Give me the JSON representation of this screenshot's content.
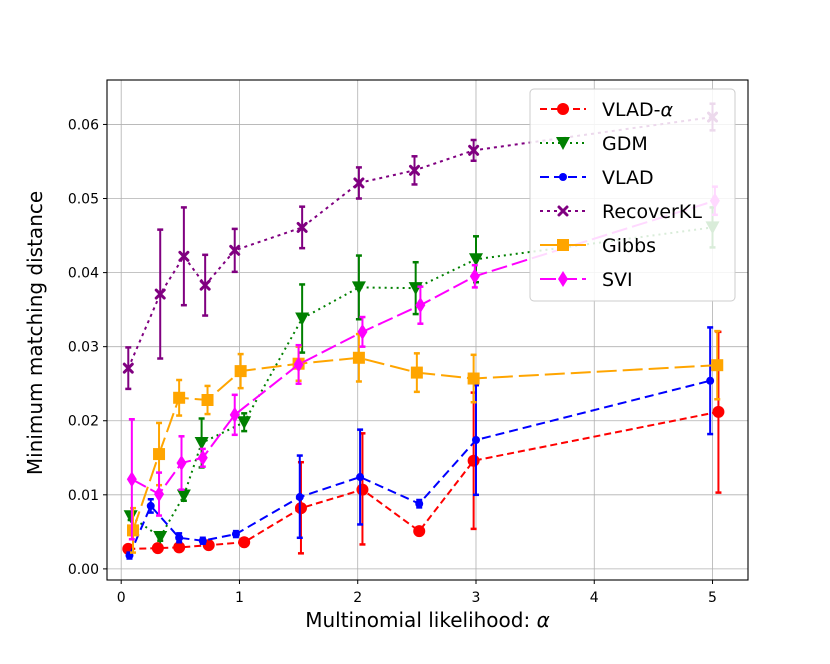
{
  "chart_data": {
    "type": "line",
    "title": "",
    "xlabel": "Multinomial likelihood: α",
    "ylabel": "Minimum matching distance",
    "xlim": [
      -0.12,
      5.3
    ],
    "ylim": [
      -0.0015,
      0.066
    ],
    "xticks": [
      0,
      1,
      2,
      3,
      4,
      5
    ],
    "xtick_labels": [
      "0",
      "1",
      "2",
      "3",
      "4",
      "5"
    ],
    "yticks": [
      0.0,
      0.01,
      0.02,
      0.03,
      0.04,
      0.05,
      0.06
    ],
    "ytick_labels": [
      "0.00",
      "0.01",
      "0.02",
      "0.03",
      "0.04",
      "0.05",
      "0.06"
    ],
    "grid": true,
    "legend_position": "top-right",
    "series": [
      {
        "name": "VLAD-α",
        "legend_label": "VLAD-",
        "legend_symbol": "α",
        "color": "#ff0000",
        "marker": "circle",
        "dash": "7,4",
        "x": [
          0.06,
          0.31,
          0.49,
          0.74,
          1.04,
          1.52,
          2.04,
          2.52,
          2.98,
          5.05
        ],
        "y": [
          0.0027,
          0.0028,
          0.0029,
          0.0032,
          0.0036,
          0.0082,
          0.0107,
          0.0051,
          0.0146,
          0.0212
        ],
        "err_low": [
          0.0025,
          0.0026,
          0.0027,
          0.003,
          0.0034,
          0.0021,
          0.0033,
          0.0049,
          0.0054,
          0.0103
        ],
        "err_high": [
          0.0029,
          0.003,
          0.0031,
          0.0034,
          0.0038,
          0.0144,
          0.0183,
          0.0053,
          0.0238,
          0.032
        ]
      },
      {
        "name": "GDM",
        "legend_label": "GDM",
        "legend_symbol": "",
        "color": "#008000",
        "marker": "triangle-down",
        "dash": "2,4",
        "x": [
          0.08,
          0.33,
          0.53,
          0.68,
          1.04,
          1.53,
          2.01,
          2.49,
          3.0,
          5.0
        ],
        "y": [
          0.0071,
          0.0043,
          0.0099,
          0.017,
          0.0198,
          0.0338,
          0.038,
          0.0379,
          0.0418,
          0.0461
        ],
        "err_low": [
          0.0066,
          0.0038,
          0.0092,
          0.0137,
          0.0186,
          0.0292,
          0.0337,
          0.0344,
          0.0387,
          0.0434
        ],
        "err_high": [
          0.0076,
          0.0048,
          0.0106,
          0.0203,
          0.021,
          0.0384,
          0.0423,
          0.0414,
          0.0449,
          0.0488
        ]
      },
      {
        "name": "VLAD",
        "legend_label": "VLAD",
        "legend_symbol": "",
        "color": "#0000ff",
        "marker": "circle-small",
        "dash": "9,5",
        "x": [
          0.07,
          0.25,
          0.49,
          0.69,
          0.97,
          1.51,
          2.02,
          2.52,
          3.0,
          4.98
        ],
        "y": [
          0.0018,
          0.0085,
          0.0042,
          0.0038,
          0.0047,
          0.0097,
          0.0124,
          0.0088,
          0.0174,
          0.0254
        ],
        "err_low": [
          0.0014,
          0.0076,
          0.0036,
          0.0034,
          0.0043,
          0.0042,
          0.006,
          0.0083,
          0.01,
          0.0182
        ],
        "err_high": [
          0.0022,
          0.0094,
          0.0048,
          0.0042,
          0.0051,
          0.0153,
          0.0188,
          0.0093,
          0.0248,
          0.0326
        ]
      },
      {
        "name": "RecoverKL",
        "legend_label": "RecoverKL",
        "legend_symbol": "",
        "color": "#800080",
        "marker": "x",
        "dash": "3,4",
        "x": [
          0.06,
          0.33,
          0.53,
          0.71,
          0.96,
          1.53,
          2.01,
          2.48,
          2.98,
          5.0
        ],
        "y": [
          0.0271,
          0.0371,
          0.0422,
          0.0383,
          0.043,
          0.0461,
          0.0521,
          0.0538,
          0.0565,
          0.061
        ],
        "err_low": [
          0.0243,
          0.0284,
          0.0356,
          0.0342,
          0.0401,
          0.0433,
          0.05,
          0.0519,
          0.0551,
          0.0592
        ],
        "err_high": [
          0.0299,
          0.0458,
          0.0488,
          0.0424,
          0.0459,
          0.0489,
          0.0542,
          0.0557,
          0.0579,
          0.0628
        ]
      },
      {
        "name": "Gibbs",
        "legend_label": "Gibbs",
        "legend_symbol": "",
        "color": "#ffa500",
        "marker": "square",
        "dash": "20,6",
        "x": [
          0.1,
          0.32,
          0.49,
          0.73,
          1.01,
          1.5,
          2.01,
          2.5,
          2.98,
          5.04
        ],
        "y": [
          0.0052,
          0.0155,
          0.0231,
          0.0228,
          0.0267,
          0.0277,
          0.0285,
          0.0265,
          0.0257,
          0.0275
        ],
        "err_low": [
          0.0022,
          0.0113,
          0.0207,
          0.0209,
          0.0244,
          0.0254,
          0.0253,
          0.0239,
          0.0225,
          0.0229
        ],
        "err_high": [
          0.0082,
          0.0197,
          0.0255,
          0.0247,
          0.029,
          0.03,
          0.0317,
          0.0291,
          0.0289,
          0.0321
        ]
      },
      {
        "name": "SVI",
        "legend_label": "SVI",
        "legend_symbol": "",
        "color": "#ff00ff",
        "marker": "diamond",
        "dash": "16,5",
        "x": [
          0.09,
          0.32,
          0.51,
          0.69,
          0.96,
          1.5,
          2.04,
          2.53,
          2.99,
          5.02
        ],
        "y": [
          0.0121,
          0.0101,
          0.0143,
          0.015,
          0.0208,
          0.0276,
          0.032,
          0.0356,
          0.0395,
          0.0497
        ],
        "err_low": [
          0.004,
          0.0072,
          0.0107,
          0.0138,
          0.0181,
          0.025,
          0.03,
          0.0331,
          0.038,
          0.0478
        ],
        "err_high": [
          0.0202,
          0.013,
          0.0179,
          0.0162,
          0.0235,
          0.0302,
          0.034,
          0.0381,
          0.041,
          0.0516
        ]
      }
    ]
  }
}
